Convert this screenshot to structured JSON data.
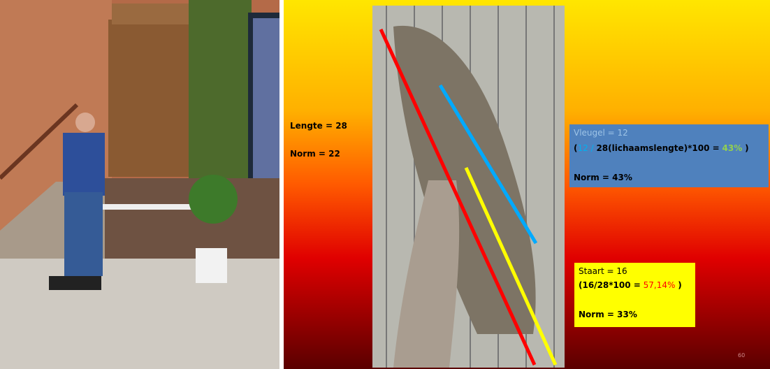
{
  "slide": {
    "lengte": {
      "label": "Lengte = 28",
      "norm": "Norm = 22"
    },
    "vleugel": {
      "label": "Vleugel = 12",
      "formula_a": "(",
      "formula_b": "12 /",
      "formula_c": "28(lichaamslengte)*100 =",
      "formula_d": "43%",
      "formula_e": ")",
      "norm": "Norm = 43%"
    },
    "staart": {
      "label": "Staart = 16",
      "formula_a": "(16/28*100 =",
      "formula_b": "57,14%",
      "formula_c": ")",
      "norm": "Norm = 33%"
    },
    "page_number": "60"
  }
}
